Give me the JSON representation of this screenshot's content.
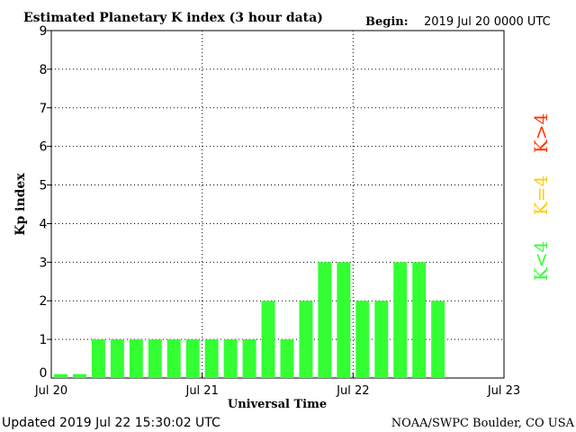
{
  "chart_data": {
    "type": "bar",
    "title": "Estimated Planetary K index (3 hour data)",
    "begin_label": "Begin:",
    "begin_value": "2019 Jul 20 0000 UTC",
    "xlabel": "Universal Time",
    "ylabel": "Kp index",
    "ylim": [
      0,
      9
    ],
    "xlim_hours": [
      0,
      72
    ],
    "x_tick_labels": [
      "Jul 20",
      "Jul 21",
      "Jul 22",
      "Jul 23"
    ],
    "y_tick_labels": [
      "0",
      "1",
      "2",
      "3",
      "4",
      "5",
      "6",
      "7",
      "8",
      "9"
    ],
    "grid": true,
    "values": [
      0.1,
      0.1,
      1,
      1,
      1,
      1,
      1,
      1,
      1,
      1,
      1,
      2,
      1,
      2,
      3,
      3,
      2,
      2,
      3,
      3,
      2
    ],
    "legend": [
      {
        "label": "K<4",
        "color": "#33ff33"
      },
      {
        "label": "K=4",
        "color": "#ffcc00"
      },
      {
        "label": "K>4",
        "color": "#ff3300"
      }
    ],
    "bar_color": "#33ff33"
  },
  "footer": {
    "updated": "Updated 2019 Jul 22 15:30:02 UTC",
    "source": "NOAA/SWPC Boulder, CO USA"
  }
}
